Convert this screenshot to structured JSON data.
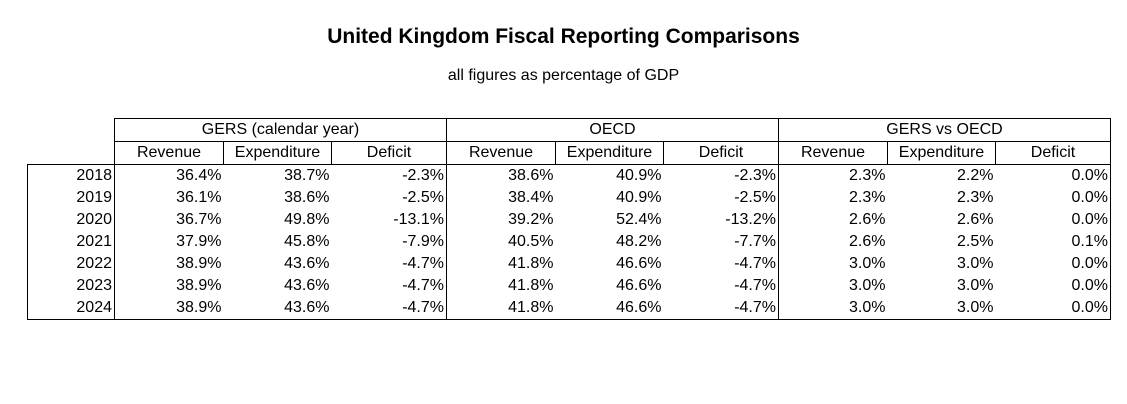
{
  "title": "United Kingdom Fiscal Reporting Comparisons",
  "subtitle": "all figures as percentage of GDP",
  "chart_data": {
    "type": "table",
    "title": "United Kingdom Fiscal Reporting Comparisons",
    "subtitle": "all figures as percentage of GDP",
    "groups": [
      "GERS (calendar year)",
      "OECD",
      "GERS vs OECD"
    ],
    "columns": [
      "Revenue",
      "Expenditure",
      "Deficit"
    ],
    "rows": [
      {
        "year": "2018",
        "values": [
          "36.4%",
          "38.7%",
          "-2.3%",
          "38.6%",
          "40.9%",
          "-2.3%",
          "2.3%",
          "2.2%",
          "0.0%"
        ]
      },
      {
        "year": "2019",
        "values": [
          "36.1%",
          "38.6%",
          "-2.5%",
          "38.4%",
          "40.9%",
          "-2.5%",
          "2.3%",
          "2.3%",
          "0.0%"
        ]
      },
      {
        "year": "2020",
        "values": [
          "36.7%",
          "49.8%",
          "-13.1%",
          "39.2%",
          "52.4%",
          "-13.2%",
          "2.6%",
          "2.6%",
          "0.0%"
        ]
      },
      {
        "year": "2021",
        "values": [
          "37.9%",
          "45.8%",
          "-7.9%",
          "40.5%",
          "48.2%",
          "-7.7%",
          "2.6%",
          "2.5%",
          "0.1%"
        ]
      },
      {
        "year": "2022",
        "values": [
          "38.9%",
          "43.6%",
          "-4.7%",
          "41.8%",
          "46.6%",
          "-4.7%",
          "3.0%",
          "3.0%",
          "0.0%"
        ]
      },
      {
        "year": "2023",
        "values": [
          "38.9%",
          "43.6%",
          "-4.7%",
          "41.8%",
          "46.6%",
          "-4.7%",
          "3.0%",
          "3.0%",
          "0.0%"
        ]
      },
      {
        "year": "2024",
        "values": [
          "38.9%",
          "43.6%",
          "-4.7%",
          "41.8%",
          "46.6%",
          "-4.7%",
          "3.0%",
          "3.0%",
          "0.0%"
        ]
      }
    ]
  }
}
